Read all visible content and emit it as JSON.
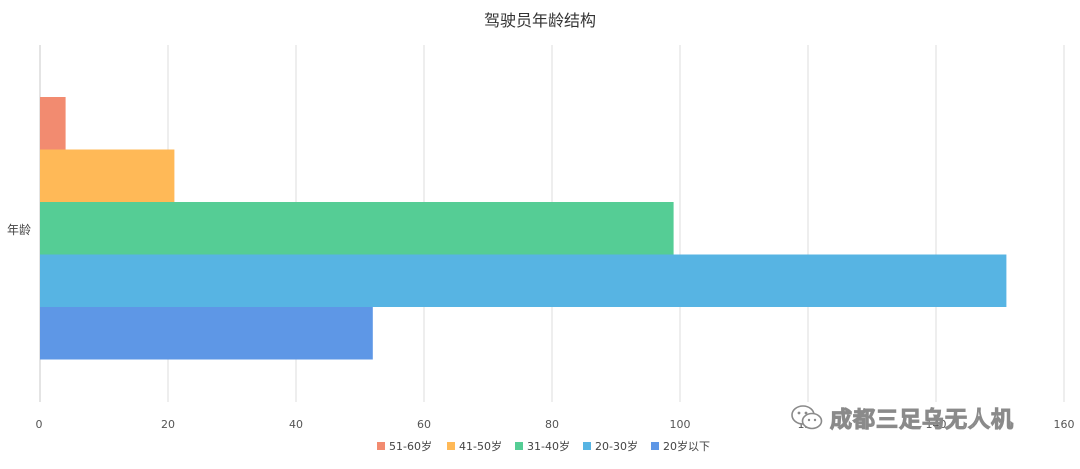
{
  "chart_data": {
    "type": "bar",
    "orientation": "horizontal",
    "title": "驾驶员年龄结构",
    "categories": [
      "年龄"
    ],
    "series": [
      {
        "name": "51-60岁",
        "values": [
          4
        ],
        "color": "#F28B70"
      },
      {
        "name": "41-50岁",
        "values": [
          21
        ],
        "color": "#FFB957"
      },
      {
        "name": "31-40岁",
        "values": [
          99
        ],
        "color": "#55CD95"
      },
      {
        "name": "20-30岁",
        "values": [
          151
        ],
        "color": "#57B4E3"
      },
      {
        "name": "20岁以下",
        "values": [
          52
        ],
        "color": "#5E97E6"
      }
    ],
    "xlim": [
      0,
      160
    ],
    "xticks": [
      0,
      20,
      40,
      60,
      80,
      100,
      120,
      140,
      160
    ],
    "grid": true,
    "legend_position": "bottom"
  },
  "watermark": {
    "text": "成都三足乌无人机",
    "icon": "wechat-icon"
  }
}
